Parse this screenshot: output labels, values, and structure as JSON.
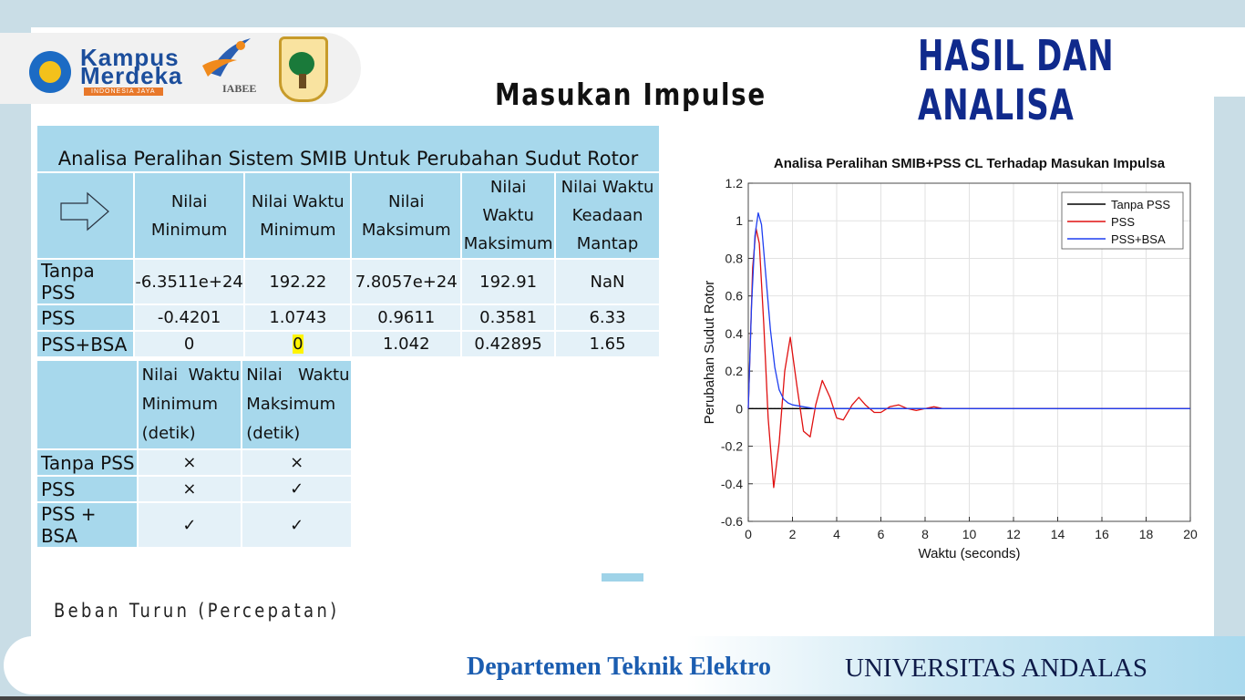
{
  "header": {
    "title": "HASIL DAN ANALISA",
    "subtitle": "Masukan Impulse",
    "logos": {
      "kampus_line1": "Kampus",
      "kampus_line2": "Merdeka",
      "kampus_line3": "INDONESIA JAYA",
      "iabee": "IABEE"
    }
  },
  "table1": {
    "title": "Analisa Peralihan Sistem SMIB Untuk Perubahan Sudut Rotor",
    "columns": [
      "Nilai Minimum",
      "Nilai Waktu Minimum",
      "Nilai Maksimum",
      "Nilai Waktu Maksimum",
      "Nilai Waktu Keadaan Mantap"
    ],
    "col_lines": [
      [
        "Nilai",
        "Minimum"
      ],
      [
        "Nilai Waktu",
        "Minimum"
      ],
      [
        "Nilai",
        "Maksimum"
      ],
      [
        "Nilai",
        "Waktu",
        "Maksimum"
      ],
      [
        "Nilai Waktu",
        "Keadaan",
        "Mantap"
      ]
    ],
    "rows": [
      {
        "label": "Tanpa PSS",
        "values": [
          "-6.3511e+24",
          "192.22",
          "7.8057e+24",
          "192.91",
          "NaN"
        ]
      },
      {
        "label": "PSS",
        "values": [
          "-0.4201",
          "1.0743",
          "0.9611",
          "0.3581",
          "6.33"
        ]
      },
      {
        "label": "PSS+BSA",
        "values": [
          "0",
          "0",
          "1.042",
          "0.42895",
          "1.65"
        ]
      }
    ]
  },
  "table2": {
    "col_lines": [
      [
        "Nilai  Waktu",
        "Minimum",
        "(detik)"
      ],
      [
        "Nilai   Waktu",
        "Maksimum",
        "(detik)"
      ]
    ],
    "rows": [
      {
        "label": "Tanpa PSS",
        "values": [
          "×",
          "×"
        ]
      },
      {
        "label": "PSS",
        "values": [
          "×",
          "✓"
        ]
      },
      {
        "label": "PSS + BSA",
        "values": [
          "✓",
          "✓"
        ]
      }
    ]
  },
  "note": "Beban Turun (Percepatan)",
  "footer": {
    "dept": "Departemen Teknik Elektro",
    "univ": "UNIVERSITAS ANDALAS"
  },
  "chart_data": {
    "type": "line",
    "title": "Analisa Peralihan SMIB+PSS CL Terhadap Masukan Impulsa",
    "xlabel": "Waktu (seconds)",
    "ylabel": "Perubahan Sudut Rotor",
    "xlim": [
      0,
      20
    ],
    "ylim": [
      -0.6,
      1.2
    ],
    "xticks": [
      0,
      2,
      4,
      6,
      8,
      10,
      12,
      14,
      16,
      18,
      20
    ],
    "yticks": [
      -0.6,
      -0.4,
      -0.2,
      0,
      0.2,
      0.4,
      0.6,
      0.8,
      1,
      1.2
    ],
    "grid": true,
    "legend_position": "top-right",
    "series": [
      {
        "name": "Tanpa PSS",
        "color": "#000000",
        "x": [
          0,
          20
        ],
        "y": [
          0,
          0
        ]
      },
      {
        "name": "PSS",
        "color": "#e01010",
        "x": [
          0,
          0.2,
          0.35,
          0.5,
          0.7,
          0.9,
          1.15,
          1.4,
          1.65,
          1.9,
          2.2,
          2.5,
          2.8,
          3.05,
          3.35,
          3.7,
          4.0,
          4.3,
          4.7,
          5.0,
          5.3,
          5.7,
          6.0,
          6.4,
          6.8,
          7.2,
          7.6,
          8.0,
          8.4,
          8.8,
          9.2,
          9.6,
          10.0,
          11.0,
          20.0
        ],
        "y": [
          0,
          0.75,
          0.96,
          0.88,
          0.45,
          -0.05,
          -0.42,
          -0.18,
          0.2,
          0.38,
          0.12,
          -0.12,
          -0.15,
          0.02,
          0.15,
          0.06,
          -0.05,
          -0.06,
          0.02,
          0.06,
          0.02,
          -0.02,
          -0.02,
          0.01,
          0.02,
          0.0,
          -0.01,
          0.0,
          0.01,
          0.0,
          0.0,
          0.0,
          0.0,
          0.0,
          0.0
        ]
      },
      {
        "name": "PSS+BSA",
        "color": "#1f3ff0",
        "x": [
          0,
          0.15,
          0.3,
          0.45,
          0.6,
          0.8,
          1.0,
          1.2,
          1.4,
          1.6,
          1.8,
          2.0,
          2.5,
          3.0,
          4.0,
          20.0
        ],
        "y": [
          0,
          0.55,
          0.92,
          1.042,
          0.98,
          0.7,
          0.42,
          0.22,
          0.1,
          0.05,
          0.03,
          0.02,
          0.01,
          0.0,
          0.0,
          0.0
        ]
      }
    ]
  }
}
